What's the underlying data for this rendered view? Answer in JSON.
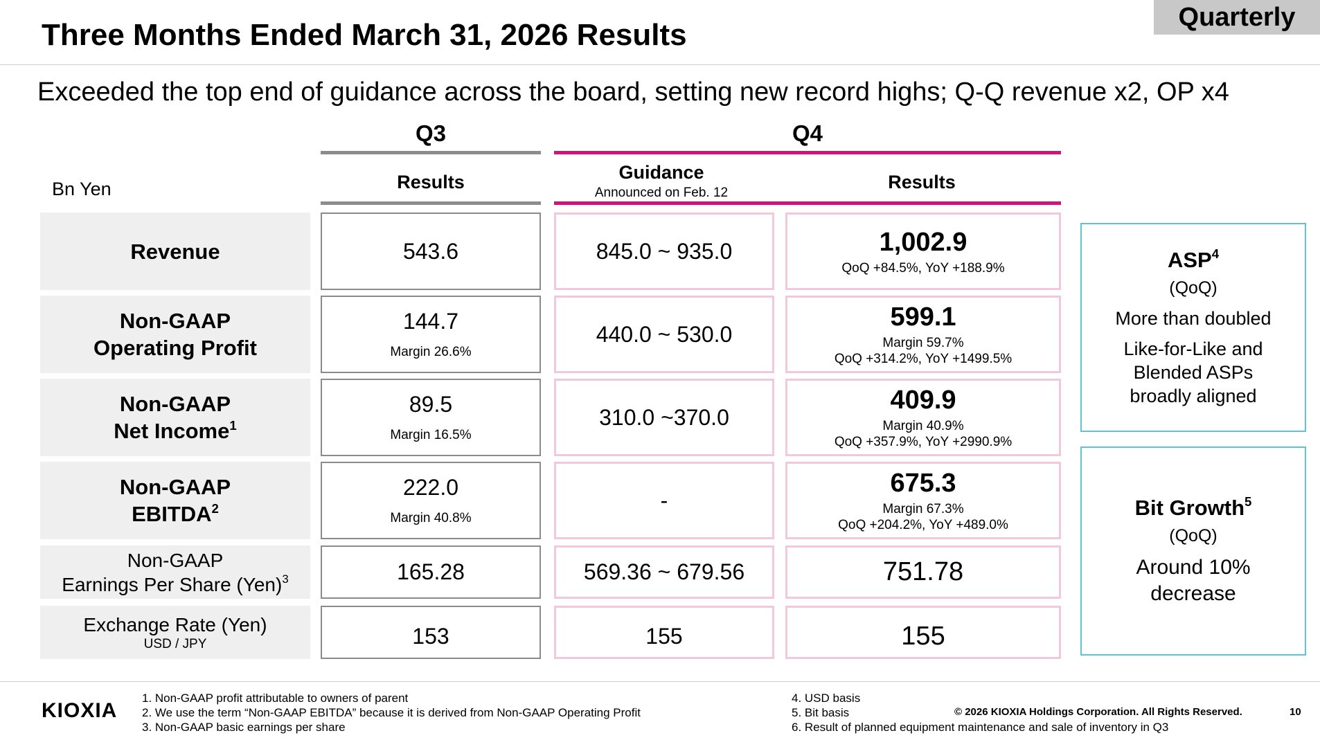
{
  "header": {
    "badge": "Quarterly",
    "title": "Three Months Ended March 31, 2026 Results",
    "subtitle": "Exceeded the top end of guidance across the board, setting new record highs; Q-Q revenue x2, OP x4"
  },
  "table": {
    "unit": "Bn Yen",
    "q3_header": "Q3",
    "q4_header": "Q4",
    "q3_results_label": "Results",
    "guidance_label": "Guidance",
    "guidance_note": "Announced on Feb. 12",
    "q4_results_label": "Results",
    "rows": [
      {
        "label1": "Revenue",
        "q3": "543.6",
        "q3_margin": "",
        "guidance": "845.0 ~ 935.0",
        "q4": "1,002.9",
        "q4_margin": "",
        "q4_change": "QoQ +84.5%, YoY +188.9%"
      },
      {
        "label1": "Non-GAAP",
        "label2": "Operating Profit",
        "q3": "144.7",
        "q3_margin": "Margin 26.6%",
        "guidance": "440.0 ~ 530.0",
        "q4": "599.1",
        "q4_margin": "Margin 59.7%",
        "q4_change": "QoQ +314.2%, YoY +1499.5%"
      },
      {
        "label1": "Non-GAAP",
        "label2": "Net Income",
        "sup": "1",
        "q3": "89.5",
        "q3_margin": "Margin 16.5%",
        "guidance": "310.0 ~370.0",
        "q4": "409.9",
        "q4_margin": "Margin 40.9%",
        "q4_change": "QoQ +357.9%, YoY +2990.9%"
      },
      {
        "label1": "Non-GAAP",
        "label2": "EBITDA",
        "sup": "2",
        "q3": "222.0",
        "q3_margin": "Margin 40.8%",
        "guidance": "-",
        "q4": "675.3",
        "q4_margin": "Margin 67.3%",
        "q4_change": "QoQ +204.2%, YoY +489.0%"
      },
      {
        "label1": "Non-GAAP",
        "label2": "Earnings Per Share (Yen)",
        "sup": "3",
        "q3": "165.28",
        "guidance": "569.36 ~ 679.56",
        "q4": "751.78"
      },
      {
        "label1": "Exchange Rate (Yen)",
        "label2": "USD / JPY",
        "q3": "153",
        "guidance": "155",
        "q4": "155"
      }
    ]
  },
  "side": {
    "asp": {
      "title": "ASP",
      "sup": "4",
      "period": "(QoQ)",
      "line1": "More than doubled",
      "line2": "Like-for-Like and",
      "line3": "Blended ASPs",
      "line4": "broadly aligned"
    },
    "bit": {
      "title": "Bit Growth",
      "sup": "5",
      "period": "(QoQ)",
      "line1": "Around 10%",
      "line2": "decrease"
    }
  },
  "footer": {
    "logo": "KIOXIA",
    "notes_left": [
      "1. Non-GAAP profit attributable to owners of parent",
      "2. We use the term “Non-GAAP EBITDA” because it is derived from Non-GAAP Operating Profit",
      "3. Non-GAAP basic earnings per share"
    ],
    "notes_right": [
      "4. USD basis",
      "5. Bit basis",
      "6. Result of planned equipment maintenance and sale of inventory in Q3"
    ],
    "copyright": "© 2026 KIOXIA Holdings Corporation. All Rights Reserved.",
    "page_number": "10"
  }
}
